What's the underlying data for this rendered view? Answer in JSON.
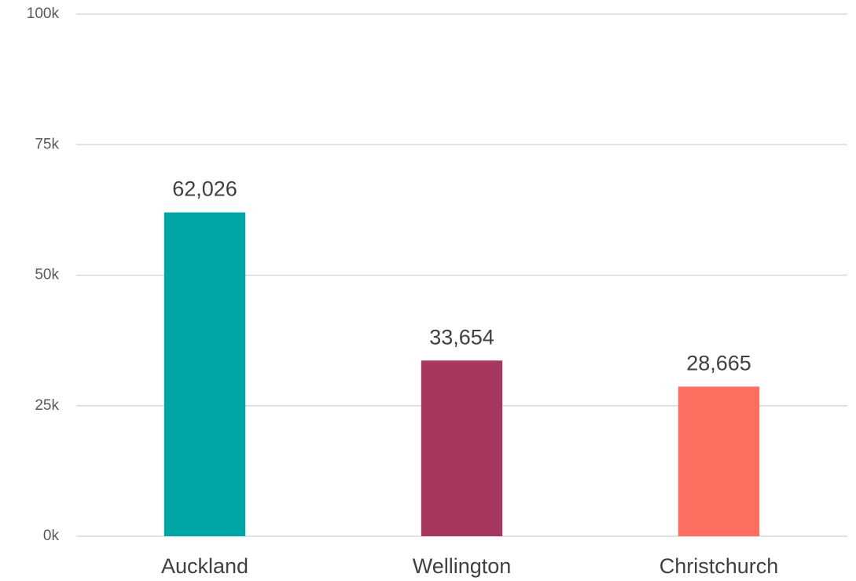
{
  "chart_data": {
    "type": "bar",
    "categories": [
      "Auckland",
      "Wellington",
      "Christchurch"
    ],
    "values": [
      62026,
      33654,
      28665
    ],
    "value_labels": [
      "62,026",
      "33,654",
      "28,665"
    ],
    "colors": [
      "#00a6a6",
      "#a8375f",
      "#ff6f61"
    ],
    "ylim": [
      0,
      100000
    ],
    "yticks": [
      {
        "value": 0,
        "label": "0k"
      },
      {
        "value": 25000,
        "label": "25k"
      },
      {
        "value": 50000,
        "label": "50k"
      },
      {
        "value": 75000,
        "label": "75k"
      },
      {
        "value": 100000,
        "label": "100k"
      }
    ],
    "grid": true
  }
}
